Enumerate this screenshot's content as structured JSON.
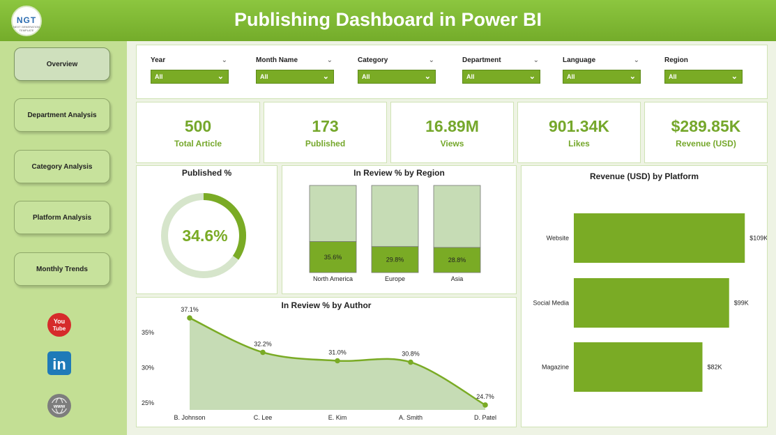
{
  "header": {
    "title": "Publishing Dashboard in Power BI",
    "logo_text": "NGT",
    "logo_sub": "NEXT GENERATION TEMPLATE"
  },
  "sidebar": {
    "items": [
      {
        "label": "Overview",
        "active": true
      },
      {
        "label": "Department Analysis",
        "active": false
      },
      {
        "label": "Category Analysis",
        "active": false
      },
      {
        "label": "Platform Analysis",
        "active": false
      },
      {
        "label": "Monthly Trends",
        "active": false
      }
    ],
    "social": [
      {
        "icon": "youtube-icon",
        "label_top": "You",
        "label_bottom": "Tube",
        "color": "#d62b2b"
      },
      {
        "icon": "linkedin-icon",
        "label": "in",
        "color": "#1f7ab8"
      },
      {
        "icon": "globe-icon",
        "label": "www",
        "color": "#7d7d7d"
      }
    ]
  },
  "filters": [
    {
      "label": "Year",
      "value": "All"
    },
    {
      "label": "Month Name",
      "value": "All"
    },
    {
      "label": "Category",
      "value": "All"
    },
    {
      "label": "Department",
      "value": "All"
    },
    {
      "label": "Language",
      "value": "All"
    },
    {
      "label": "Region",
      "value": "All"
    }
  ],
  "kpis": [
    {
      "value": "500",
      "label": "Total Article"
    },
    {
      "value": "173",
      "label": "Published"
    },
    {
      "value": "16.89M",
      "label": "Views"
    },
    {
      "value": "901.34K",
      "label": "Likes"
    },
    {
      "value": "$289.85K",
      "label": "Revenue (USD)"
    }
  ],
  "colors": {
    "accent": "#7aab25",
    "accent_light": "#c6dcb5",
    "header": "#7cb82f",
    "sidebar": "#c3df94"
  },
  "chart_data": [
    {
      "type": "pie",
      "title": "Published %",
      "value_label": "34.6%",
      "values": [
        34.6,
        65.4
      ]
    },
    {
      "type": "bar",
      "title": "In Review % by Region",
      "categories": [
        "North America",
        "Europe",
        "Asia"
      ],
      "values": [
        35.6,
        29.8,
        28.8
      ],
      "value_labels": [
        "35.6%",
        "29.8%",
        "28.8%"
      ],
      "ylim": [
        0,
        100
      ]
    },
    {
      "type": "bar",
      "orientation": "horizontal",
      "title": "Revenue (USD) by Platform",
      "categories": [
        "Website",
        "Social Media",
        "Magazine"
      ],
      "values": [
        109,
        99,
        82
      ],
      "value_labels": [
        "$109K",
        "$99K",
        "$82K"
      ],
      "xlim": [
        0,
        120
      ]
    },
    {
      "type": "area",
      "title": "In Review % by Author",
      "categories": [
        "B. Johnson",
        "C. Lee",
        "E. Kim",
        "A. Smith",
        "D. Patel"
      ],
      "values": [
        37.1,
        32.2,
        31.0,
        30.8,
        24.7
      ],
      "value_labels": [
        "37.1%",
        "32.2%",
        "31.0%",
        "30.8%",
        "24.7%"
      ],
      "yticks": [
        "35%",
        "30%",
        "25%"
      ],
      "ytick_values": [
        35,
        30,
        25
      ],
      "ylim": [
        24,
        38
      ]
    }
  ]
}
